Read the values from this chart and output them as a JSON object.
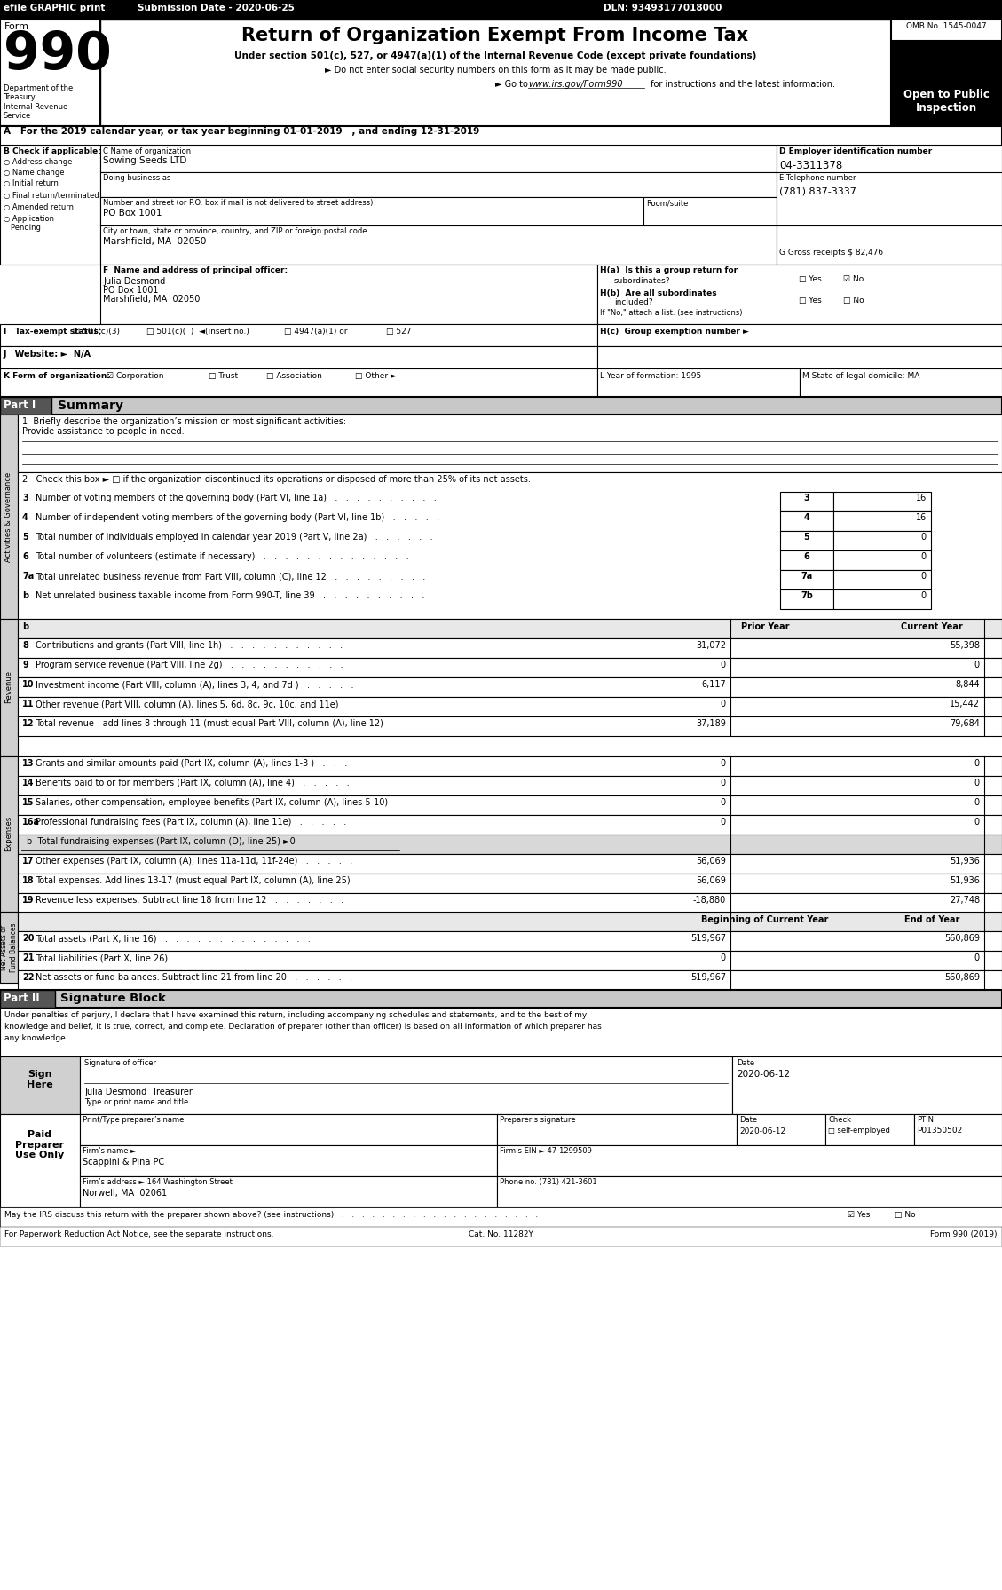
{
  "efile_text": "efile GRAPHIC print",
  "submission_date": "Submission Date - 2020-06-25",
  "dln": "DLN: 93493177018000",
  "form_number": "990",
  "form_label": "Form",
  "main_title": "Return of Organization Exempt From Income Tax",
  "subtitle1": "Under section 501(c), 527, or 4947(a)(1) of the Internal Revenue Code (except private foundations)",
  "subtitle2": "Do not enter social security numbers on this form as it may be made public.",
  "subtitle3": "Go to www.irs.gov/Form990 for instructions and the latest information.",
  "omb_no": "OMB No. 1545-0047",
  "year": "2019",
  "open_text": "Open to Public\nInspection",
  "dept_text": "Department of the\nTreasury\nInternal Revenue\nService",
  "cal_year_text": "A   For the 2019 calendar year, or tax year beginning 01-01-2019   , and ending 12-31-2019",
  "b_label": "B Check if applicable:",
  "check_items": [
    "○ Address change",
    "○ Name change",
    "○ Initial return",
    "○ Final return/terminated",
    "○ Amended return",
    "○ Application\n   Pending"
  ],
  "c_label": "C Name of organization",
  "org_name": "Sowing Seeds LTD",
  "dba_label": "Doing business as",
  "address_label": "Number and street (or P.O. box if mail is not delivered to street address)",
  "address_value": "PO Box 1001",
  "room_label": "Room/suite",
  "city_label": "City or town, state or province, country, and ZIP or foreign postal code",
  "city_value": "Marshfield, MA  02050",
  "d_label": "D Employer identification number",
  "ein": "04-3311378",
  "e_label": "E Telephone number",
  "phone": "(781) 837-3337",
  "g_label": "G Gross receipts $ 82,476",
  "f_label": "F  Name and address of principal officer:",
  "principal_name": "Julia Desmond",
  "principal_address": "PO Box 1001",
  "principal_city": "Marshfield, MA  02050",
  "ha_label": "H(a)  Is this a group return for",
  "ha_text": "subordinates?",
  "hb_label": "H(b)  Are all subordinates",
  "hb_text": "included?",
  "hb_note": "If \"No,\" attach a list. (see instructions)",
  "hc_label": "H(c)  Group exemption number ►",
  "i_label": "I   Tax-exempt status:",
  "j_label": "J   Website: ►  N/A",
  "k_label": "K Form of organization:",
  "l_label": "L Year of formation: 1995",
  "m_label": "M State of legal domicile: MA",
  "part1_label": "Part I",
  "part1_title": "Summary",
  "line1_label": "1  Briefly describe the organization’s mission or most significant activities:",
  "line1_value": "Provide assistance to people in need.",
  "line2_text": "2   Check this box ► □ if the organization discontinued its operations or disposed of more than 25% of its net assets.",
  "gov_lines": [
    [
      "3",
      "Number of voting members of the governing body (Part VI, line 1a)   .   .   .   .   .   .   .   .   .   .",
      "3",
      "16"
    ],
    [
      "4",
      "Number of independent voting members of the governing body (Part VI, line 1b)   .   .   .   .   .",
      "4",
      "16"
    ],
    [
      "5",
      "Total number of individuals employed in calendar year 2019 (Part V, line 2a)   .   .   .   .   .   .",
      "5",
      "0"
    ],
    [
      "6",
      "Total number of volunteers (estimate if necessary)   .   .   .   .   .   .   .   .   .   .   .   .   .   .",
      "6",
      "0"
    ],
    [
      "7a",
      "Total unrelated business revenue from Part VIII, column (C), line 12   .   .   .   .   .   .   .   .   .",
      "7a",
      "0"
    ],
    [
      "b",
      "Net unrelated business taxable income from Form 990-T, line 39   .   .   .   .   .   .   .   .   .   .",
      "7b",
      "0"
    ]
  ],
  "rev_header_b": "b",
  "revenue_header": [
    "Prior Year",
    "Current Year"
  ],
  "revenue_lines": [
    [
      "8",
      "Contributions and grants (Part VIII, line 1h)   .   .   .   .   .   .   .   .   .   .   .",
      "31,072",
      "55,398"
    ],
    [
      "9",
      "Program service revenue (Part VIII, line 2g)   .   .   .   .   .   .   .   .   .   .   .",
      "0",
      "0"
    ],
    [
      "10",
      "Investment income (Part VIII, column (A), lines 3, 4, and 7d )   .   .   .   .   .",
      "6,117",
      "8,844"
    ],
    [
      "11",
      "Other revenue (Part VIII, column (A), lines 5, 6d, 8c, 9c, 10c, and 11e)",
      "0",
      "15,442"
    ],
    [
      "12",
      "Total revenue—add lines 8 through 11 (must equal Part VIII, column (A), line 12)",
      "37,189",
      "79,684"
    ]
  ],
  "expense_lines": [
    [
      "13",
      "Grants and similar amounts paid (Part IX, column (A), lines 1-3 )   .   .   .",
      "0",
      "0"
    ],
    [
      "14",
      "Benefits paid to or for members (Part IX, column (A), line 4)   .   .   .   .   .",
      "0",
      "0"
    ],
    [
      "15",
      "Salaries, other compensation, employee benefits (Part IX, column (A), lines 5-10)",
      "0",
      "0"
    ],
    [
      "16a",
      "Professional fundraising fees (Part IX, column (A), line 11e)   .   .   .   .   .",
      "0",
      "0"
    ],
    [
      "b",
      "Total fundraising expenses (Part IX, column (D), line 25) ►0",
      "",
      ""
    ],
    [
      "17",
      "Other expenses (Part IX, column (A), lines 11a-11d, 11f-24e)   .   .   .   .   .",
      "56,069",
      "51,936"
    ],
    [
      "18",
      "Total expenses. Add lines 13-17 (must equal Part IX, column (A), line 25)",
      "56,069",
      "51,936"
    ],
    [
      "19",
      "Revenue less expenses. Subtract line 18 from line 12   .   .   .   .   .   .   .",
      "-18,880",
      "27,748"
    ]
  ],
  "netassets_header": [
    "Beginning of Current Year",
    "End of Year"
  ],
  "netassets_lines": [
    [
      "20",
      "Total assets (Part X, line 16)   .   .   .   .   .   .   .   .   .   .   .   .   .   .",
      "519,967",
      "560,869"
    ],
    [
      "21",
      "Total liabilities (Part X, line 26)   .   .   .   .   .   .   .   .   .   .   .   .   .",
      "0",
      "0"
    ],
    [
      "22",
      "Net assets or fund balances. Subtract line 21 from line 20   .   .   .   .   .   .",
      "519,967",
      "560,869"
    ]
  ],
  "part2_label": "Part II",
  "part2_title": "Signature Block",
  "sig_text1": "Under penalties of perjury, I declare that I have examined this return, including accompanying schedules and statements, and to the best of my",
  "sig_text2": "knowledge and belief, it is true, correct, and complete. Declaration of preparer (other than officer) is based on all information of which preparer has",
  "sig_text3": "any knowledge.",
  "sig_date": "2020-06-12",
  "sig_label": "Signature of officer",
  "sig_name": "Julia Desmond  Treasurer",
  "sig_type_label": "Type or print name and title",
  "preparer_name_label": "Print/Type preparer’s name",
  "preparer_sig_label": "Preparer’s signature",
  "preparer_date_label": "Date",
  "preparer_check_label": "Check",
  "preparer_self_employed": "self-employed",
  "ptin_label": "PTIN",
  "ptin_value": "P01350502",
  "firm_name_label": "Firm’s name",
  "firm_name": "Scappini & Pina PC",
  "firm_ein_label": "Firm’s EIN ►",
  "firm_ein": "47-1299509",
  "firm_address_label": "Firm’s address",
  "firm_address": "► 164 Washington Street",
  "firm_city": "Norwell, MA  02061",
  "phone_label": "Phone no. (781) 421-3601",
  "irs_discuss": "May the IRS discuss this return with the preparer shown above? (see instructions)   .   .   .   .   .   .   .   .   .   .   .   .   .   .   .   .   .   .   .   .",
  "cat_no": "Cat. No. 11282Y",
  "form_footer": "Form 990 (2019)",
  "paperwork_text": "For Paperwork Reduction Act Notice, see the separate instructions."
}
